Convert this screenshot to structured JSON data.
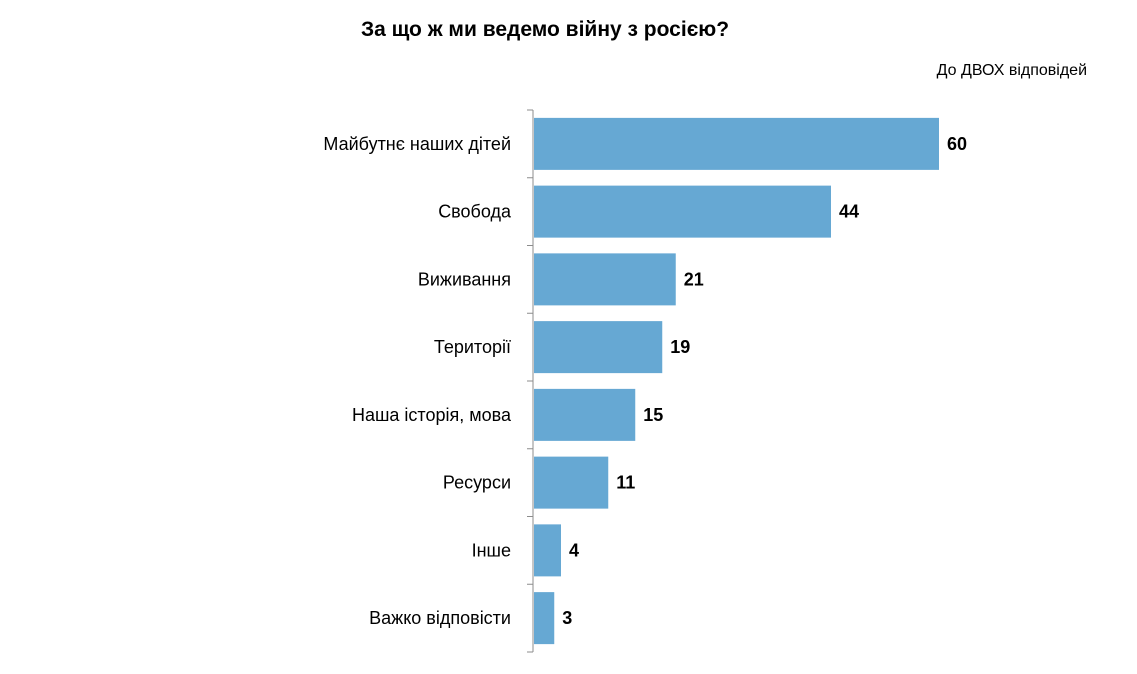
{
  "chart_data": {
    "type": "bar",
    "orientation": "horizontal",
    "title": "За що ж ми ведемо війну з росією?",
    "subtitle": "До ДВОХ відповідей",
    "categories": [
      "Майбутнє наших дітей",
      "Свобода",
      "Виживання",
      "Території",
      "Наша історія, мова",
      "Ресурси",
      "Інше",
      "Важко відповісти"
    ],
    "values": [
      60,
      44,
      21,
      19,
      15,
      11,
      4,
      3
    ],
    "xlim": [
      0,
      60
    ],
    "grid": false,
    "legend": "none",
    "bar_color": "#66a8d3"
  }
}
